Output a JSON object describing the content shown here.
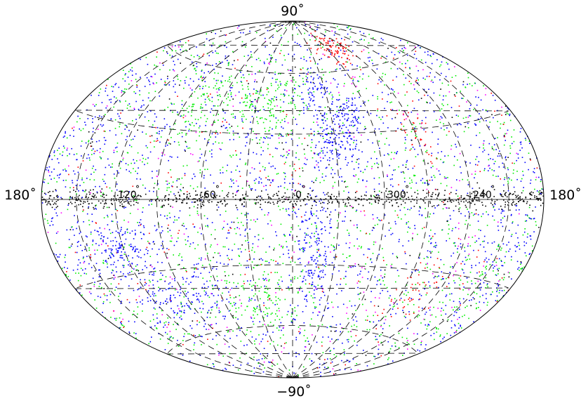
{
  "projection": "hammer-aitoff",
  "coordinate_system": "galactic",
  "labels": {
    "north_pole": "90˚",
    "south_pole": "−90˚",
    "left_edge": "180˚",
    "right_edge": "180˚"
  },
  "meridian_labels": [
    {
      "lon": 120,
      "text": "120"
    },
    {
      "lon": 60,
      "text": "60"
    },
    {
      "lon": 0,
      "text": "0"
    },
    {
      "lon": 300,
      "text": "300"
    },
    {
      "lon": 240,
      "text": "240"
    }
  ],
  "graticule": {
    "meridian_step_deg": 30,
    "parallel_step_deg": 30,
    "style": "dashed",
    "color": "#000000"
  },
  "point_classes": [
    {
      "color": "#0000ff",
      "name": "blue"
    },
    {
      "color": "#00ee00",
      "name": "green"
    },
    {
      "color": "#ff0000",
      "name": "red"
    },
    {
      "color": "#ff00ff",
      "name": "magenta"
    },
    {
      "color": "#000000",
      "name": "black"
    }
  ],
  "clusters": [
    {
      "color": "#000000",
      "lon": 0,
      "lat": 0,
      "dl": 180,
      "db": 2.5,
      "n": 700,
      "dense": true
    },
    {
      "color": "#0000ff",
      "lon": 125,
      "lat": -20,
      "dl": 20,
      "db": 8,
      "n": 160,
      "dense": false
    },
    {
      "color": "#0000ff",
      "lon": 100,
      "lat": -40,
      "dl": 25,
      "db": 10,
      "n": 120,
      "dense": false
    },
    {
      "color": "#0000ff",
      "lon": 345,
      "lat": -20,
      "dl": 8,
      "db": 20,
      "n": 140,
      "dense": false
    },
    {
      "color": "#0000ff",
      "lon": 330,
      "lat": 25,
      "dl": 12,
      "db": 10,
      "n": 120,
      "dense": false
    },
    {
      "color": "#0000ff",
      "lon": 315,
      "lat": 38,
      "dl": 10,
      "db": 8,
      "n": 80,
      "dense": false
    },
    {
      "color": "#0000ff",
      "lon": 340,
      "lat": 50,
      "dl": 10,
      "db": 15,
      "n": 80,
      "dense": false
    },
    {
      "color": "#ff0000",
      "lon": 290,
      "lat": 72,
      "dl": 25,
      "db": 8,
      "n": 90,
      "dense": false
    },
    {
      "color": "#ff0000",
      "lon": 270,
      "lat": 30,
      "dl": 10,
      "db": 15,
      "n": 40,
      "dense": false
    },
    {
      "color": "#ff0000",
      "lon": 260,
      "lat": -40,
      "dl": 15,
      "db": 10,
      "n": 45,
      "dense": false
    },
    {
      "color": "#00ee00",
      "lon": 20,
      "lat": 45,
      "dl": 25,
      "db": 15,
      "n": 140,
      "dense": false
    },
    {
      "color": "#00ee00",
      "lon": 70,
      "lat": 45,
      "dl": 25,
      "db": 15,
      "n": 100,
      "dense": false
    },
    {
      "color": "#00ee00",
      "lon": 30,
      "lat": -45,
      "dl": 30,
      "db": 15,
      "n": 120,
      "dense": false
    },
    {
      "color": "#00ee00",
      "lon": 200,
      "lat": -30,
      "dl": 30,
      "db": 20,
      "n": 80,
      "dense": false
    },
    {
      "color": "#0000ff",
      "lon": 160,
      "lat": 20,
      "dl": 30,
      "db": 25,
      "n": 100,
      "dense": false
    },
    {
      "color": "#0000ff",
      "lon": 200,
      "lat": -20,
      "dl": 25,
      "db": 25,
      "n": 100,
      "dense": false
    }
  ],
  "background": [
    {
      "color": "#0000ff",
      "n": 1700
    },
    {
      "color": "#00ee00",
      "n": 1300
    },
    {
      "color": "#ff0000",
      "n": 250
    },
    {
      "color": "#ff00ff",
      "n": 300
    },
    {
      "color": "#000000",
      "n": 180
    }
  ]
}
